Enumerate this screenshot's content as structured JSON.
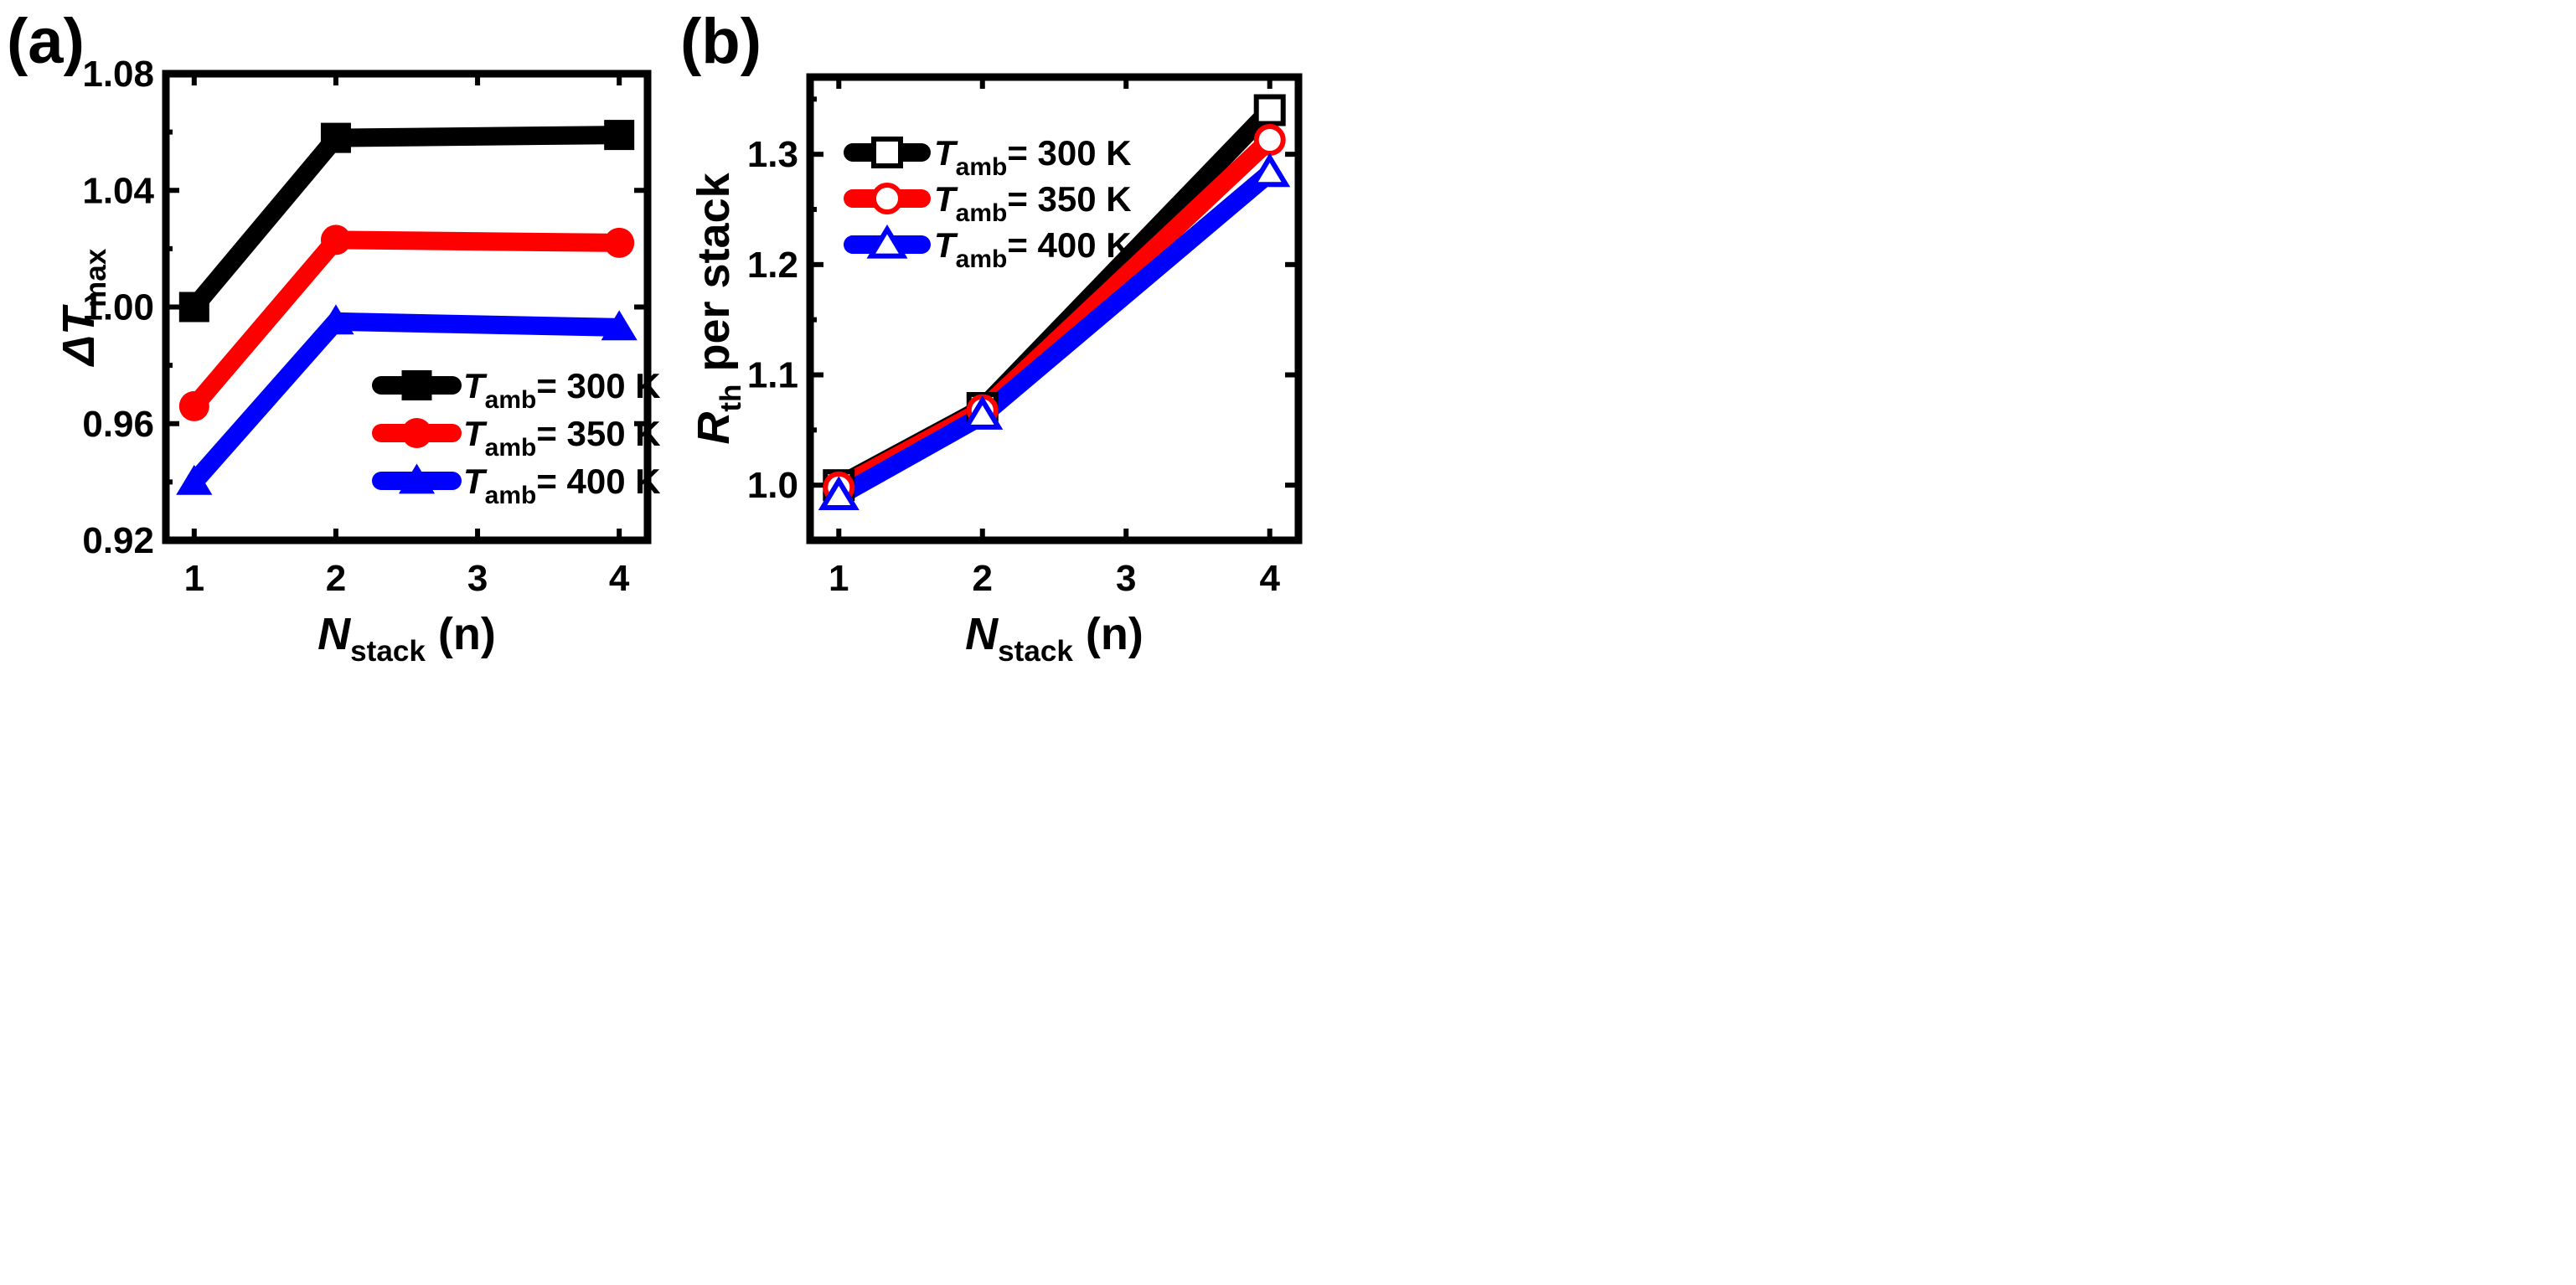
{
  "panels": [
    {
      "id": "a",
      "chart_data": {
        "type": "line",
        "panel_label": "(a)",
        "x": [
          1,
          2,
          4
        ],
        "xlim": [
          0.8,
          4.2
        ],
        "ylim": [
          0.92,
          1.08
        ],
        "x_ticks": [
          1,
          2,
          3,
          4
        ],
        "x_tick_labels": [
          "1",
          "2",
          "3",
          "4"
        ],
        "y_ticks": [
          0.92,
          0.96,
          1.0,
          1.04,
          1.08
        ],
        "y_tick_labels": [
          "0.92",
          "0.96",
          "1.00",
          "1.04",
          "1.08"
        ],
        "y_minor_ticks": [
          0.94,
          0.98,
          1.02,
          1.06
        ],
        "xlabel": {
          "main": "N",
          "sub": "stack",
          "rest": " (n)"
        },
        "ylabel": {
          "prefix": "ΔT",
          "sub": "max"
        },
        "legend_position": "bottom-right",
        "grid": false,
        "series": [
          {
            "name": "T_amb = 300 K",
            "legend_main": "T",
            "legend_sub": "amb",
            "legend_rest": "= 300 K",
            "color": "#000000",
            "marker": "square",
            "filled": true,
            "values": [
              1.0,
              1.058,
              1.059
            ]
          },
          {
            "name": "T_amb = 350 K",
            "legend_main": "T",
            "legend_sub": "amb",
            "legend_rest": "= 350 K",
            "color": "#ff0000",
            "marker": "circle",
            "filled": true,
            "values": [
              0.966,
              1.023,
              1.022
            ]
          },
          {
            "name": "T_amb = 400 K",
            "legend_main": "T",
            "legend_sub": "amb",
            "legend_rest": "= 400 K",
            "color": "#0000ff",
            "marker": "triangle",
            "filled": true,
            "values": [
              0.94,
              0.995,
              0.993
            ]
          }
        ]
      }
    },
    {
      "id": "b",
      "chart_data": {
        "type": "line",
        "panel_label": "(b)",
        "x": [
          1,
          2,
          4
        ],
        "xlim": [
          0.8,
          4.2
        ],
        "ylim": [
          0.95,
          1.37
        ],
        "x_ticks": [
          1,
          2,
          3,
          4
        ],
        "x_tick_labels": [
          "1",
          "2",
          "3",
          "4"
        ],
        "y_ticks": [
          1.0,
          1.1,
          1.2,
          1.3
        ],
        "y_tick_labels": [
          "1.0",
          "1.1",
          "1.2",
          "1.3"
        ],
        "y_minor_ticks": [
          1.05,
          1.15,
          1.25,
          1.35
        ],
        "xlabel": {
          "main": "N",
          "sub": "stack",
          "rest": " (n)"
        },
        "ylabel": {
          "prefix": "R",
          "sub": "th",
          "rest": " per stack"
        },
        "legend_position": "top-left",
        "grid": false,
        "series": [
          {
            "name": "T_amb = 300 K",
            "legend_main": "T",
            "legend_sub": "amb",
            "legend_rest": "= 300 K",
            "color": "#000000",
            "marker": "square",
            "filled": false,
            "values": [
              1.0,
              1.07,
              1.34
            ]
          },
          {
            "name": "T_amb = 350 K",
            "legend_main": "T",
            "legend_sub": "amb",
            "legend_rest": "= 350 K",
            "color": "#ff0000",
            "marker": "circle",
            "filled": false,
            "values": [
              0.998,
              1.068,
              1.313
            ]
          },
          {
            "name": "T_amb = 400 K",
            "legend_main": "T",
            "legend_sub": "amb",
            "legend_rest": "= 400 K",
            "color": "#0000ff",
            "marker": "triangle",
            "filled": false,
            "values": [
              0.99,
              1.063,
              1.283
            ]
          }
        ]
      }
    }
  ]
}
